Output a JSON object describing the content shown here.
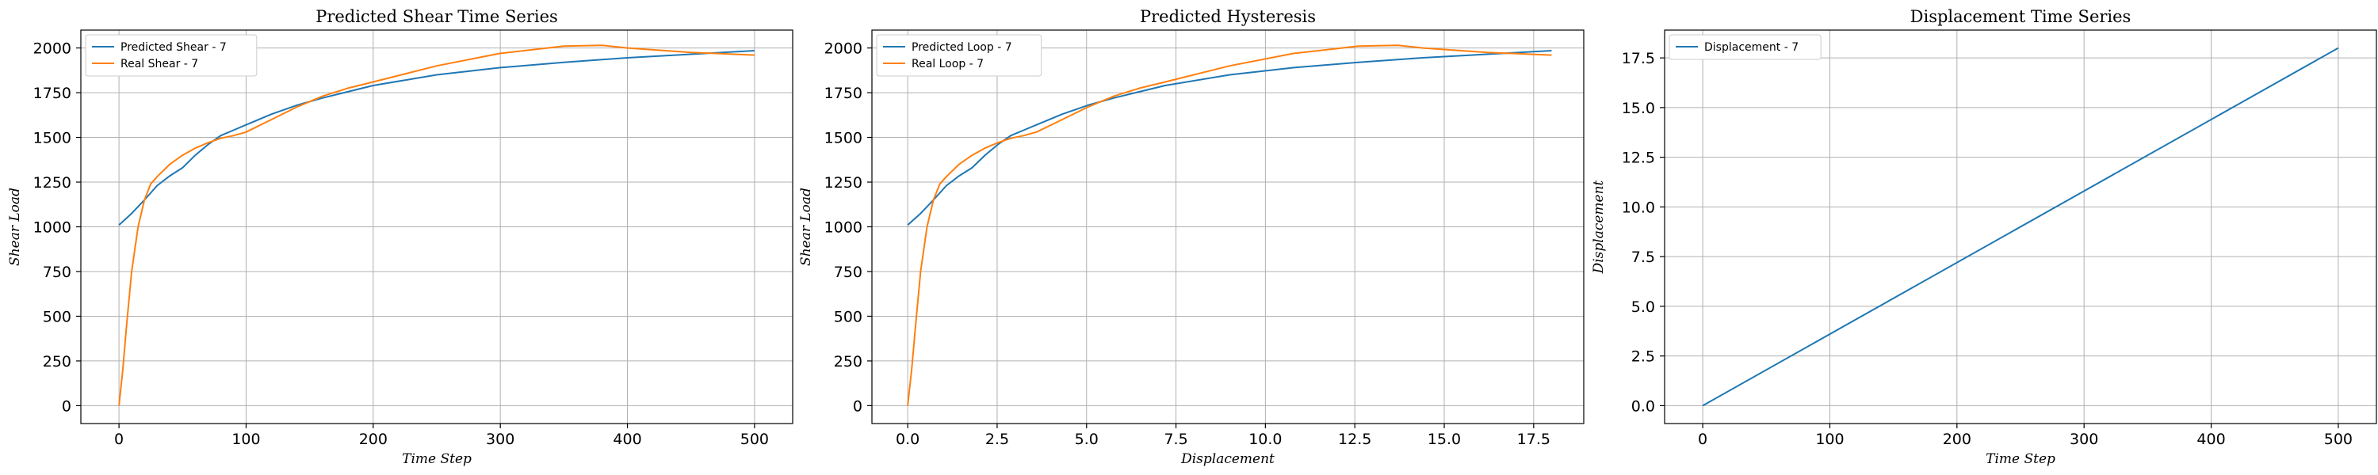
{
  "chart_data": [
    {
      "type": "line",
      "title": "Predicted Shear Time Series",
      "xlabel": "Time Step",
      "ylabel": "Shear Load",
      "xlim": [
        -30,
        530
      ],
      "ylim": [
        -100,
        2100
      ],
      "xticks": [
        0,
        100,
        200,
        300,
        400,
        500
      ],
      "xtick_labels": [
        "0",
        "100",
        "200",
        "300",
        "400",
        "500"
      ],
      "yticks": [
        0,
        250,
        500,
        750,
        1000,
        1250,
        1500,
        1750,
        2000
      ],
      "ytick_labels": [
        "0",
        "250",
        "500",
        "750",
        "1000",
        "1250",
        "1500",
        "1750",
        "2000"
      ],
      "grid": true,
      "legend_position": "top-left",
      "series": [
        {
          "name": "Predicted Shear - 7",
          "color": "#1f77b4",
          "x": [
            0,
            10,
            20,
            30,
            40,
            50,
            60,
            70,
            80,
            90,
            100,
            120,
            140,
            160,
            180,
            200,
            250,
            300,
            350,
            400,
            450,
            500
          ],
          "y": [
            1010,
            1075,
            1150,
            1230,
            1285,
            1330,
            1400,
            1460,
            1510,
            1540,
            1570,
            1630,
            1680,
            1720,
            1755,
            1790,
            1850,
            1890,
            1920,
            1945,
            1965,
            1985
          ]
        },
        {
          "name": "Real Shear - 7",
          "color": "#ff7f0e",
          "x": [
            0,
            3,
            6,
            10,
            15,
            20,
            25,
            30,
            40,
            50,
            60,
            70,
            80,
            90,
            100,
            120,
            140,
            160,
            180,
            200,
            250,
            300,
            350,
            380,
            400,
            450,
            500
          ],
          "y": [
            0,
            200,
            450,
            750,
            1000,
            1150,
            1240,
            1280,
            1350,
            1400,
            1440,
            1470,
            1495,
            1510,
            1530,
            1600,
            1670,
            1730,
            1775,
            1810,
            1900,
            1970,
            2010,
            2015,
            2000,
            1975,
            1960
          ]
        }
      ]
    },
    {
      "type": "line",
      "title": "Predicted Hysteresis",
      "xlabel": "Displacement",
      "ylabel": "Shear Load",
      "xlim": [
        -1.0,
        18.9
      ],
      "ylim": [
        -100,
        2100
      ],
      "xticks": [
        0,
        2.5,
        5,
        7.5,
        10,
        12.5,
        15,
        17.5
      ],
      "xtick_labels": [
        "0.0",
        "2.5",
        "5.0",
        "7.5",
        "10.0",
        "12.5",
        "15.0",
        "17.5"
      ],
      "yticks": [
        0,
        250,
        500,
        750,
        1000,
        1250,
        1500,
        1750,
        2000
      ],
      "ytick_labels": [
        "0",
        "250",
        "500",
        "750",
        "1000",
        "1250",
        "1500",
        "1750",
        "2000"
      ],
      "grid": true,
      "legend_position": "top-left",
      "series": [
        {
          "name": "Predicted Loop - 7",
          "color": "#1f77b4",
          "x": [
            0,
            0.36,
            0.72,
            1.08,
            1.44,
            1.8,
            2.16,
            2.52,
            2.88,
            3.24,
            3.6,
            4.32,
            5.04,
            5.76,
            6.48,
            7.2,
            9.0,
            10.8,
            12.6,
            14.4,
            16.2,
            18.0
          ],
          "y": [
            1010,
            1075,
            1150,
            1230,
            1285,
            1330,
            1400,
            1460,
            1510,
            1540,
            1570,
            1630,
            1680,
            1720,
            1755,
            1790,
            1850,
            1890,
            1920,
            1945,
            1965,
            1985
          ]
        },
        {
          "name": "Real Loop - 7",
          "color": "#ff7f0e",
          "x": [
            0,
            0.11,
            0.22,
            0.36,
            0.54,
            0.72,
            0.9,
            1.08,
            1.44,
            1.8,
            2.16,
            2.52,
            2.88,
            3.24,
            3.6,
            4.32,
            5.04,
            5.76,
            6.48,
            7.2,
            9.0,
            10.8,
            12.6,
            13.7,
            14.4,
            16.2,
            18.0
          ],
          "y": [
            0,
            200,
            450,
            750,
            1000,
            1150,
            1240,
            1280,
            1350,
            1400,
            1440,
            1470,
            1495,
            1510,
            1530,
            1600,
            1670,
            1730,
            1775,
            1810,
            1900,
            1970,
            2010,
            2015,
            2000,
            1975,
            1960
          ]
        }
      ]
    },
    {
      "type": "line",
      "title": "Displacement Time Series",
      "xlabel": "Time Step",
      "ylabel": "Displacement",
      "xlim": [
        -30,
        530
      ],
      "ylim": [
        -0.9,
        18.9
      ],
      "xticks": [
        0,
        100,
        200,
        300,
        400,
        500
      ],
      "xtick_labels": [
        "0",
        "100",
        "200",
        "300",
        "400",
        "500"
      ],
      "yticks": [
        0,
        2.5,
        5,
        7.5,
        10,
        12.5,
        15,
        17.5
      ],
      "ytick_labels": [
        "0.0",
        "2.5",
        "5.0",
        "7.5",
        "10.0",
        "12.5",
        "15.0",
        "17.5"
      ],
      "grid": true,
      "legend_position": "top-left",
      "series": [
        {
          "name": "Displacement - 7",
          "color": "#1f77b4",
          "x": [
            0,
            500
          ],
          "y": [
            0,
            18.0
          ]
        }
      ]
    }
  ]
}
